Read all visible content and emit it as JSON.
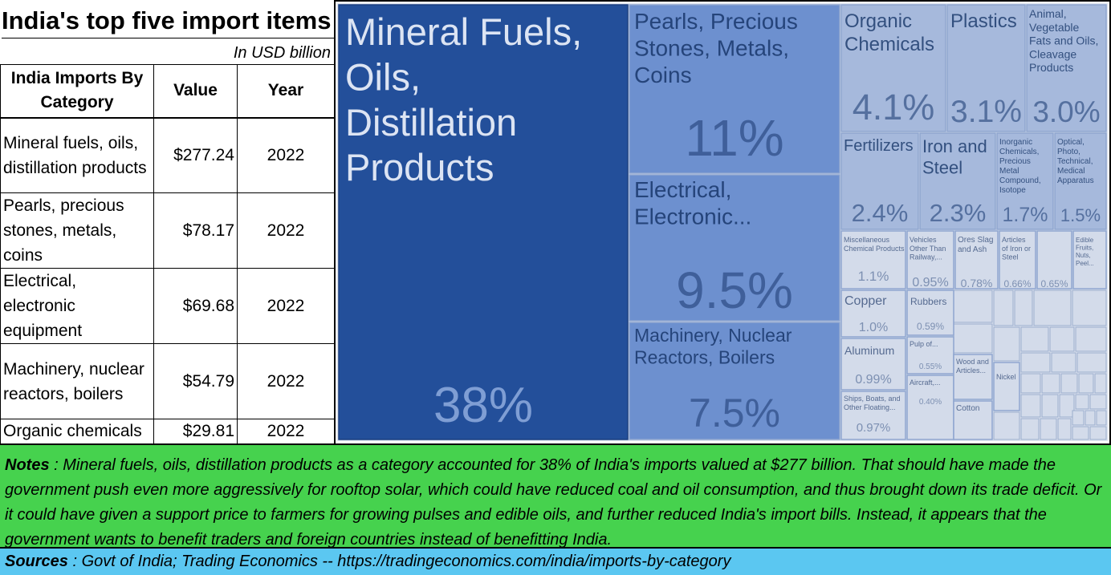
{
  "table": {
    "title": "India's top five import items",
    "unit_note": "In USD billion",
    "headers": [
      "India Imports By Category",
      "Value",
      "Year"
    ],
    "rows": [
      [
        "Mineral fuels, oils, distillation products",
        "$277.24",
        "2022"
      ],
      [
        "Pearls, precious stones, metals, coins",
        "$78.17",
        "2022"
      ],
      [
        "Electrical, electronic equipment",
        "$69.68",
        "2022"
      ],
      [
        "Machinery, nuclear reactors, boilers",
        "$54.79",
        "2022"
      ],
      [
        "Organic chemicals",
        "$29.81",
        "2022"
      ]
    ]
  },
  "chart_data": {
    "type": "treemap",
    "unit": "% of imports",
    "items": [
      {
        "name": "Mineral Fuels, Oils, Distillation Products",
        "pct_label": "38%",
        "value": 38
      },
      {
        "name": "Pearls, Precious Stones, Metals, Coins",
        "pct_label": "11%",
        "value": 11
      },
      {
        "name": "Electrical, Electronic...",
        "pct_label": "9.5%",
        "value": 9.5
      },
      {
        "name": "Machinery, Nuclear Reactors, Boilers",
        "pct_label": "7.5%",
        "value": 7.5
      },
      {
        "name": "Organic Chemicals",
        "pct_label": "4.1%",
        "value": 4.1
      },
      {
        "name": "Plastics",
        "pct_label": "3.1%",
        "value": 3.1
      },
      {
        "name": "Animal, Vegetable Fats and Oils, Cleavage Products",
        "pct_label": "3.0%",
        "value": 3.0
      },
      {
        "name": "Fertilizers",
        "pct_label": "2.4%",
        "value": 2.4
      },
      {
        "name": "Iron and Steel",
        "pct_label": "2.3%",
        "value": 2.3
      },
      {
        "name": "Inorganic Chemicals, Precious Metal Compound, Isotope",
        "pct_label": "1.7%",
        "value": 1.7
      },
      {
        "name": "Optical, Photo, Technical, Medical Apparatus",
        "pct_label": "1.5%",
        "value": 1.5
      },
      {
        "name": "Miscellaneous Chemical Products",
        "pct_label": "1.1%",
        "value": 1.1
      },
      {
        "name": "Vehicles Other Than Railway,...",
        "pct_label": "0.95%",
        "value": 0.95
      },
      {
        "name": "Ores Slag and Ash",
        "pct_label": "0.78%",
        "value": 0.78
      },
      {
        "name": "Articles of Iron or Steel",
        "pct_label": "0.66%",
        "value": 0.66
      },
      {
        "name": "",
        "pct_label": "0.65%",
        "value": 0.65
      },
      {
        "name": "Edible Fruits, Nuts, Peel...",
        "pct_label": "",
        "value": null
      },
      {
        "name": "Copper",
        "pct_label": "1.0%",
        "value": 1.0
      },
      {
        "name": "Aluminum",
        "pct_label": "0.99%",
        "value": 0.99
      },
      {
        "name": "Ships, Boats, and Other Floating...",
        "pct_label": "0.97%",
        "value": 0.97
      },
      {
        "name": "Rubbers",
        "pct_label": "0.59%",
        "value": 0.59
      },
      {
        "name": "Pulp of...",
        "pct_label": "0.55%",
        "value": 0.55
      },
      {
        "name": "Aircraft,...",
        "pct_label": "0.40%",
        "value": 0.4
      },
      {
        "name": "Wood and Articles...",
        "pct_label": "",
        "value": null
      },
      {
        "name": "Nickel",
        "pct_label": "",
        "value": null
      },
      {
        "name": "Cotton",
        "pct_label": "",
        "value": null
      }
    ]
  },
  "notes": {
    "label": "Notes",
    "text": " : Mineral fuels, oils, distillation products as a category accounted for 38% of India's imports valued at $277 billion.  That should have made the government push even more aggressively for rooftop solar, which could have reduced coal and oil consumption, and thus brought down its trade deficit.  Or it could have given a support price to farmers for growing pulses and edible oils, and further reduced India's import bills. Instead, it appears that the government wants to benefit traders and foreign countries instead of benefitting India."
  },
  "sources": {
    "label": "Sources",
    "text": " : Govt of India; Trading Economics -- https://tradingeconomics.com/india/imports-by-category"
  },
  "colors": {
    "tile_dark": "#234f9a",
    "tile_mid": "#6d90cf",
    "tile_light": "#a6b9dc",
    "tile_pale": "#d3dbea",
    "notes_bg": "#46d24e",
    "sources_bg": "#5bc7f1"
  }
}
